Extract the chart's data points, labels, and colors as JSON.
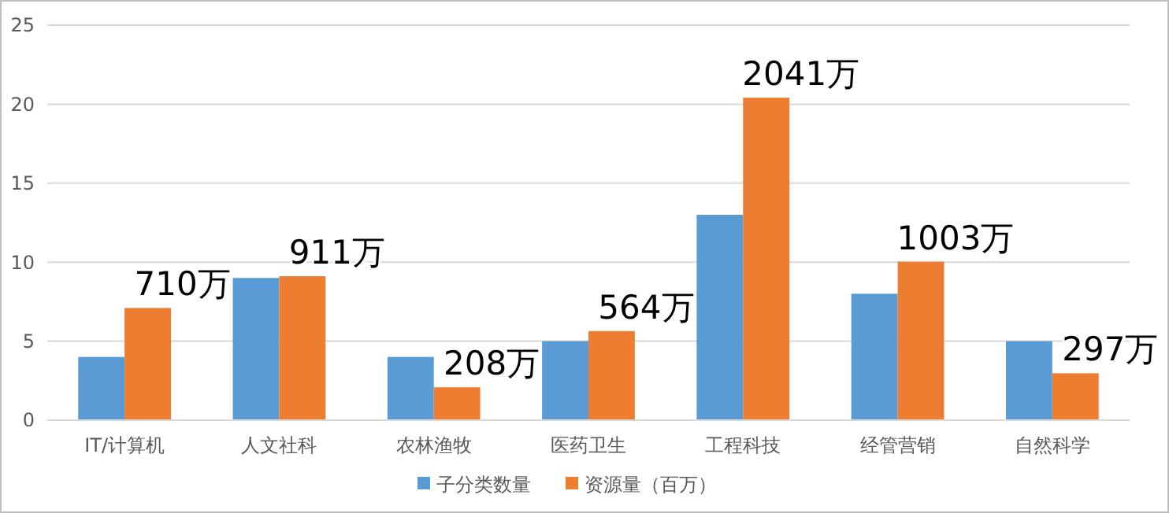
{
  "chart_data": {
    "type": "bar",
    "categories": [
      "IT/计算机",
      "人文社科",
      "农林渔牧",
      "医药卫生",
      "工程科技",
      "经管营销",
      "自然科学"
    ],
    "series": [
      {
        "name": "子分类数量",
        "color": "#5b9bd5",
        "values": [
          4,
          9,
          4,
          5,
          13,
          8,
          5
        ]
      },
      {
        "name": "资源量（百万）",
        "color": "#ed7d31",
        "values": [
          7.1,
          9.11,
          2.08,
          5.64,
          20.41,
          10.03,
          2.97
        ]
      }
    ],
    "annotations": [
      {
        "text": "710万",
        "x": "IT/计算机",
        "y": 7.1
      },
      {
        "text": "911万",
        "x": "人文社科",
        "y": 9.11
      },
      {
        "text": "208万",
        "x": "农林渔牧",
        "y": 2.08
      },
      {
        "text": "564万",
        "x": "医药卫生",
        "y": 5.64
      },
      {
        "text": "2041万",
        "x": "工程科技",
        "y": 20.41
      },
      {
        "text": "1003万",
        "x": "经管营销",
        "y": 10.03
      },
      {
        "text": "297万",
        "x": "自然科学",
        "y": 2.97
      }
    ],
    "ylim": [
      0,
      25
    ],
    "yticks": [
      0,
      5,
      10,
      15,
      20,
      25
    ],
    "grid": "y",
    "legend": "bottom"
  }
}
